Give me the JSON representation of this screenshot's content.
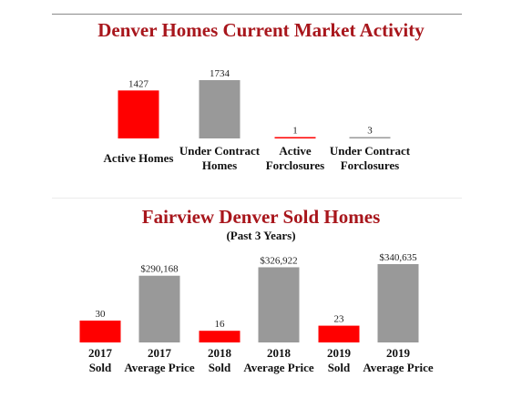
{
  "chart_data": [
    {
      "type": "bar",
      "title": "Denver Homes Current Market Activity",
      "subtitle": "",
      "categories": [
        "Active Homes",
        "Under Contract Homes",
        "Active Forclosures",
        "Under Contract Forclosures"
      ],
      "category_lines": [
        [
          "Active Homes"
        ],
        [
          "Under Contract",
          "Homes"
        ],
        [
          "Active",
          "Forclosures"
        ],
        [
          "Under Contract",
          "Forclosures"
        ]
      ],
      "values": [
        1427,
        1734,
        1,
        3
      ],
      "value_labels": [
        "1427",
        "1734",
        "1",
        "3"
      ],
      "bar_colors": [
        "#ff0000",
        "#999999",
        "#ff0000",
        "#999999"
      ],
      "grid": false,
      "ylim": [
        0,
        1734
      ]
    },
    {
      "type": "bar",
      "title": "Fairview Denver Sold Homes",
      "subtitle": "(Past 3 Years)",
      "categories": [
        "2017 Sold",
        "2017 Average Price",
        "2018 Sold",
        "2018 Average Price",
        "2019 Sold",
        "2019 Average Price"
      ],
      "category_lines": [
        [
          "2017",
          "Sold"
        ],
        [
          "2017",
          "Average Price"
        ],
        [
          "2018",
          "Sold"
        ],
        [
          "2018",
          "Average Price"
        ],
        [
          "2019",
          "Sold"
        ],
        [
          "2019",
          "Average Price"
        ]
      ],
      "values": [
        30,
        290168,
        16,
        326922,
        23,
        340635
      ],
      "value_labels": [
        "30",
        "$290,168",
        "16",
        "$326,922",
        "23",
        "$340,635"
      ],
      "bar_colors": [
        "#ff0000",
        "#999999",
        "#ff0000",
        "#999999",
        "#ff0000",
        "#999999"
      ],
      "grid": false,
      "note_scale": "sold counts and prices are drawn on separate scales"
    }
  ]
}
